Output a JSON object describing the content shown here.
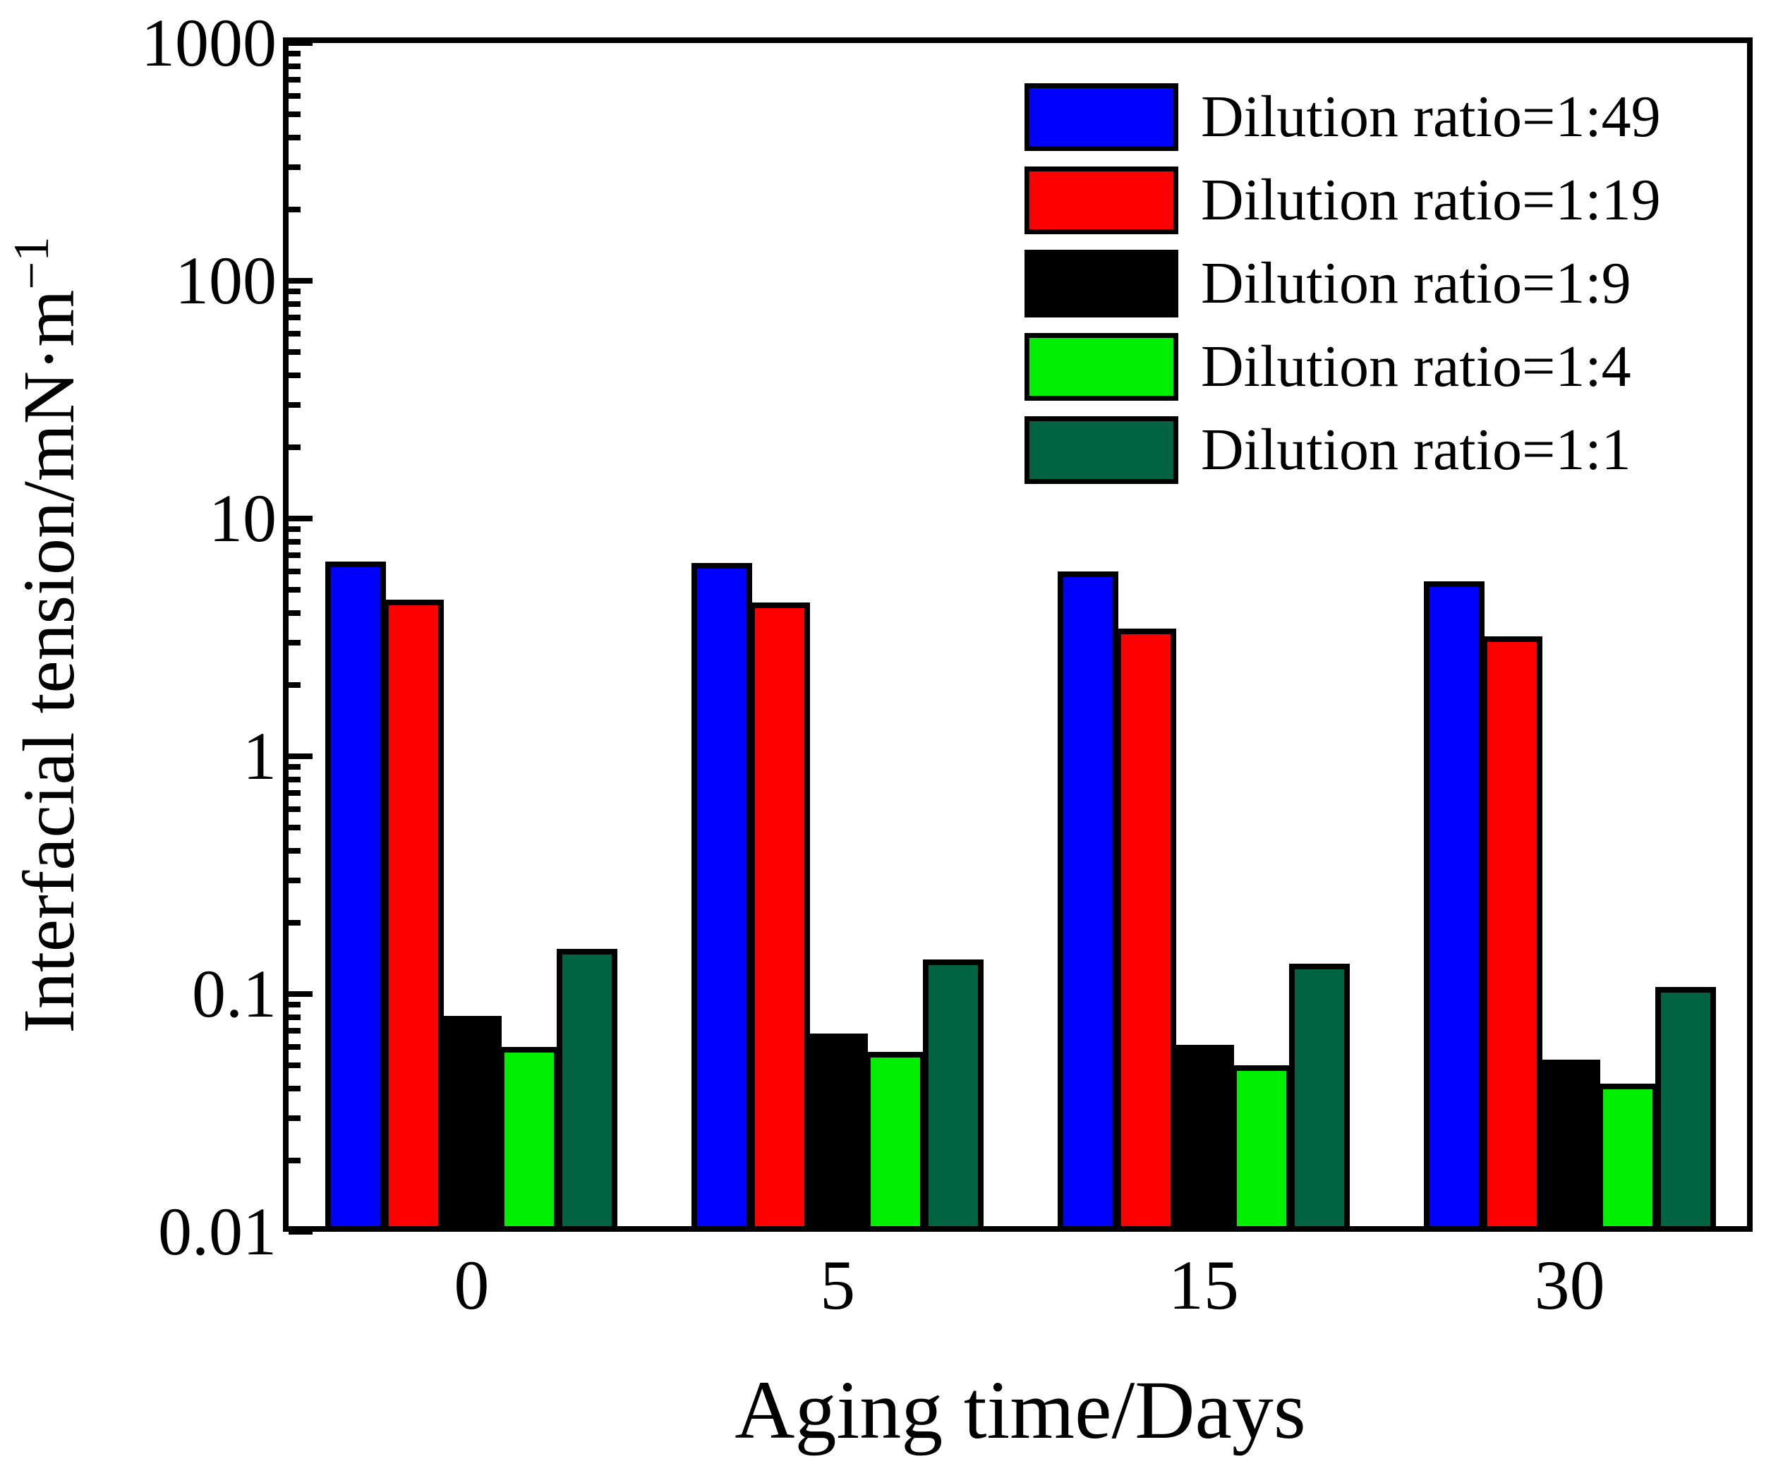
{
  "chart_data": {
    "type": "bar",
    "title": "",
    "categories": [
      "0",
      "5",
      "15",
      "30"
    ],
    "series": [
      {
        "name": "Dilution ratio=1:49",
        "color": "#0000ff",
        "values": [
          6.6,
          6.5,
          6.0,
          5.45
        ]
      },
      {
        "name": "Dilution ratio=1:19",
        "color": "#ff0000",
        "values": [
          4.55,
          4.45,
          3.45,
          3.2
        ]
      },
      {
        "name": "Dilution ratio=1:9",
        "color": "#000000",
        "values": [
          0.081,
          0.068,
          0.061,
          0.053
        ]
      },
      {
        "name": "Dilution ratio=1:4",
        "color": "#00ee00",
        "values": [
          0.06,
          0.057,
          0.05,
          0.042
        ]
      },
      {
        "name": "Dilution ratio=1:1",
        "color": "#006442",
        "values": [
          0.155,
          0.14,
          0.134,
          0.107
        ]
      }
    ],
    "yscale": "log",
    "ylim": [
      0.01,
      1000
    ],
    "ytick_labels": [
      "1000",
      "100",
      "10",
      "1",
      "0.1",
      "0.01"
    ],
    "ylabel_main": "Interfacial tension/mN·m",
    "ylabel_sup": "−1",
    "xlabel": "Aging time/Days",
    "legend_position": "upper-right-inside",
    "grid": false,
    "axis_color": "#000000",
    "background": "#ffffff"
  }
}
